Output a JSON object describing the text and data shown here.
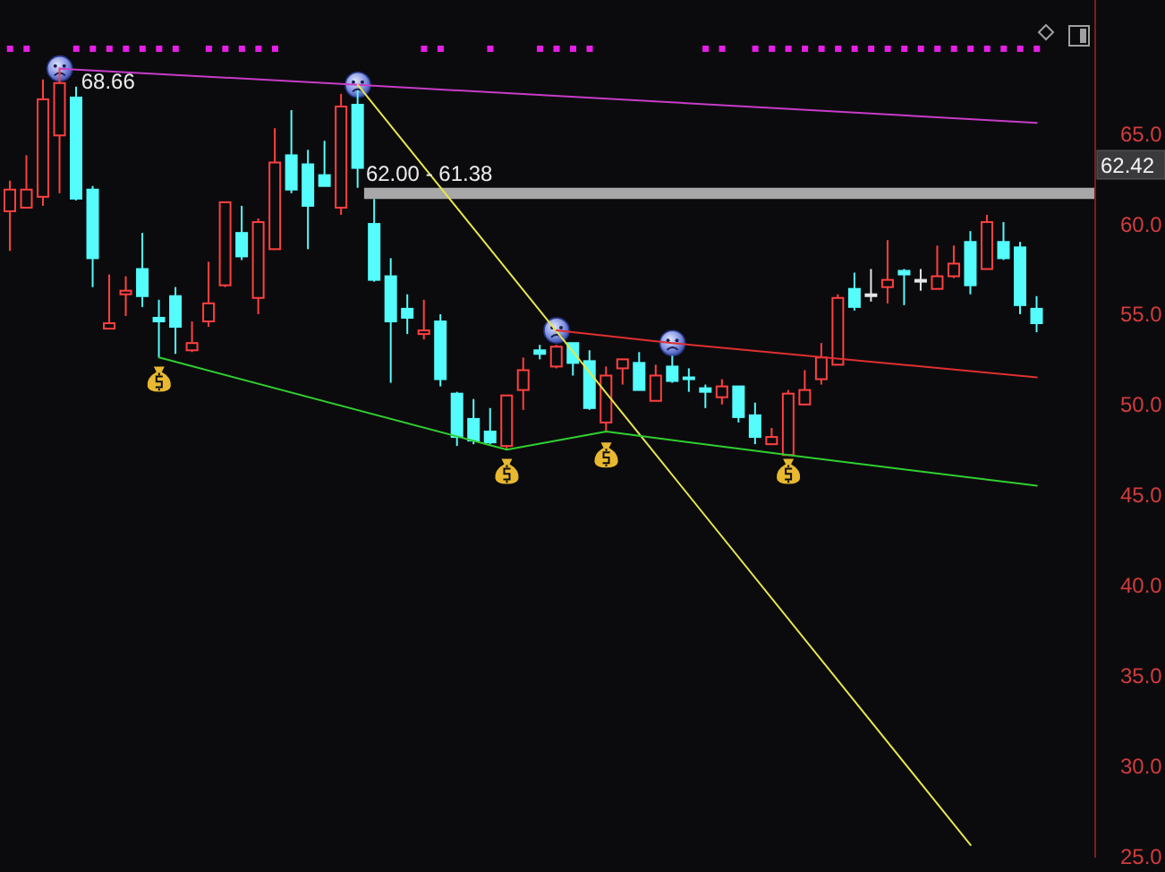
{
  "chart_data": {
    "type": "candlestick",
    "categories": [
      null,
      null,
      null,
      null,
      null,
      null,
      null,
      null,
      null,
      null,
      null,
      null,
      null,
      null,
      null,
      null,
      null,
      null,
      null,
      null,
      null,
      null,
      null,
      null,
      null,
      null,
      null,
      null,
      null,
      null,
      null,
      null,
      null,
      null,
      null,
      null,
      null,
      null,
      null,
      null,
      null,
      null,
      null,
      null,
      null,
      null,
      null,
      null,
      null,
      null,
      null,
      null,
      null,
      null,
      null,
      null,
      null,
      null,
      null,
      null,
      null,
      null,
      null
    ],
    "ohlc": [
      [
        60.7,
        62.4,
        58.5,
        61.9
      ],
      [
        60.9,
        63.8,
        60.9,
        61.9
      ],
      [
        61.5,
        68.0,
        61.0,
        66.9
      ],
      [
        64.9,
        68.66,
        61.7,
        67.8
      ],
      [
        67.0,
        67.6,
        61.3,
        61.4
      ],
      [
        61.9,
        62.1,
        56.5,
        58.1
      ],
      [
        54.2,
        57.2,
        54.2,
        54.5
      ],
      [
        56.1,
        57.1,
        54.9,
        56.3
      ],
      [
        57.5,
        59.5,
        55.4,
        56.0
      ],
      [
        54.8,
        55.8,
        52.6,
        54.6
      ],
      [
        56.0,
        56.5,
        52.8,
        54.3
      ],
      [
        53.0,
        54.6,
        52.9,
        53.4
      ],
      [
        54.6,
        57.9,
        54.3,
        55.6
      ],
      [
        56.6,
        61.2,
        56.5,
        61.2
      ],
      [
        59.5,
        61.0,
        58.0,
        58.2
      ],
      [
        55.9,
        60.3,
        55.0,
        60.1
      ],
      [
        58.6,
        65.3,
        58.6,
        63.4
      ],
      [
        63.8,
        66.3,
        61.7,
        61.9
      ],
      [
        63.3,
        64.1,
        58.6,
        61.0
      ],
      [
        62.7,
        64.6,
        62.1,
        62.1
      ],
      [
        60.9,
        67.2,
        60.5,
        66.5
      ],
      [
        66.6,
        67.4,
        62.0,
        63.1
      ],
      [
        60.0,
        61.38,
        56.8,
        56.9
      ],
      [
        57.1,
        58.1,
        51.2,
        54.6
      ],
      [
        55.3,
        56.1,
        53.9,
        54.8
      ],
      [
        53.9,
        55.8,
        53.6,
        54.1
      ],
      [
        54.6,
        55.0,
        51.0,
        51.4
      ],
      [
        50.6,
        50.7,
        47.7,
        48.2
      ],
      [
        49.2,
        50.3,
        47.8,
        48.0
      ],
      [
        48.5,
        49.8,
        47.8,
        47.9
      ],
      [
        47.7,
        50.5,
        47.5,
        50.5
      ],
      [
        50.8,
        52.6,
        49.7,
        51.9
      ],
      [
        53.0,
        53.3,
        52.5,
        52.8
      ],
      [
        52.1,
        53.3,
        52.0,
        53.2
      ],
      [
        53.4,
        53.4,
        51.6,
        52.3
      ],
      [
        52.4,
        53.0,
        49.7,
        49.8
      ],
      [
        49.0,
        52.1,
        48.5,
        51.6
      ],
      [
        52.0,
        52.5,
        51.1,
        52.5
      ],
      [
        52.3,
        52.9,
        50.8,
        50.8
      ],
      [
        50.2,
        52.2,
        50.2,
        51.6
      ],
      [
        52.1,
        52.7,
        51.2,
        51.3
      ],
      [
        51.5,
        52.0,
        50.7,
        51.4
      ],
      [
        50.9,
        51.1,
        49.8,
        50.7
      ],
      [
        50.4,
        51.4,
        50.0,
        51.0
      ],
      [
        51.0,
        51.0,
        49.0,
        49.3
      ],
      [
        49.4,
        50.1,
        47.8,
        48.2
      ],
      [
        47.8,
        48.7,
        47.8,
        48.2
      ],
      [
        47.2,
        50.8,
        47.2,
        50.6
      ],
      [
        50.0,
        51.9,
        50.0,
        50.8
      ],
      [
        51.4,
        53.4,
        51.1,
        52.6
      ],
      [
        52.2,
        56.1,
        52.2,
        55.9
      ],
      [
        56.4,
        57.3,
        55.2,
        55.4
      ],
      [
        56.1,
        57.5,
        55.7,
        56.0
      ],
      [
        56.5,
        59.1,
        55.6,
        56.9
      ],
      [
        57.4,
        57.5,
        55.5,
        57.2
      ],
      [
        56.9,
        57.5,
        56.3,
        56.8
      ],
      [
        56.4,
        58.8,
        56.4,
        57.1
      ],
      [
        57.1,
        58.8,
        57.0,
        57.8
      ],
      [
        59.0,
        59.6,
        56.1,
        56.6
      ],
      [
        57.5,
        60.5,
        57.5,
        60.1
      ],
      [
        59.0,
        60.1,
        58.0,
        58.1
      ],
      [
        58.7,
        59.0,
        55.0,
        55.5
      ],
      [
        55.3,
        56.0,
        54.0,
        54.5
      ]
    ],
    "colors": [
      "#ff4040",
      "#ff4040",
      "#ff4040",
      "#ff4040",
      "#54fcfc",
      "#54fcfc",
      "#ff4040",
      "#ff4040",
      "#54fcfc",
      "#54fcfc",
      "#54fcfc",
      "#ff4040",
      "#ff4040",
      "#ff4040",
      "#54fcfc",
      "#ff4040",
      "#ff4040",
      "#54fcfc",
      "#54fcfc",
      "#54fcfc",
      "#ff4040",
      "#54fcfc",
      "#54fcfc",
      "#54fcfc",
      "#54fcfc",
      "#ff4040",
      "#54fcfc",
      "#54fcfc",
      "#54fcfc",
      "#54fcfc",
      "#ff4040",
      "#ff4040",
      "#54fcfc",
      "#ff4040",
      "#54fcfc",
      "#54fcfc",
      "#ff4040",
      "#ff4040",
      "#54fcfc",
      "#ff4040",
      "#54fcfc",
      "#54fcfc",
      "#54fcfc",
      "#ff4040",
      "#54fcfc",
      "#54fcfc",
      "#ff4040",
      "#ff4040",
      "#ff4040",
      "#ff4040",
      "#ff4040",
      "#54fcfc",
      "#e6e6e6",
      "#ff4040",
      "#54fcfc",
      "#e6e6e6",
      "#ff4040",
      "#ff4040",
      "#54fcfc",
      "#ff4040",
      "#54fcfc",
      "#54fcfc",
      "#54fcfc"
    ],
    "series": [
      {
        "type": "line",
        "color": "#c83cc8",
        "values": [
          null,
          null,
          null,
          68.6,
          null,
          null,
          null,
          null,
          null,
          null,
          null,
          null,
          null,
          null,
          null,
          null,
          null,
          null,
          null,
          null,
          null,
          67.7,
          null,
          null,
          null,
          null,
          null,
          null,
          null,
          null,
          null,
          null,
          null,
          null,
          null,
          null,
          null,
          null,
          null,
          null,
          null,
          null,
          null,
          null,
          null,
          null,
          null,
          null,
          null,
          null,
          null,
          null,
          null,
          null,
          null,
          null,
          null,
          null,
          null,
          null,
          null,
          null,
          65.6
        ]
      },
      {
        "type": "line",
        "color": "#e6e64a",
        "values": [
          null,
          null,
          null,
          null,
          null,
          null,
          null,
          null,
          null,
          null,
          null,
          null,
          null,
          null,
          null,
          null,
          null,
          null,
          null,
          null,
          null,
          67.7,
          null,
          null,
          null,
          null,
          null,
          null,
          null,
          null,
          null,
          null,
          null,
          null,
          null,
          null,
          null,
          null,
          null,
          null,
          null,
          null,
          null,
          null,
          null,
          null,
          null,
          null,
          null,
          null,
          null,
          null,
          null,
          null,
          null,
          null,
          null,
          null,
          25.6,
          null,
          null,
          null,
          null
        ]
      },
      {
        "type": "line",
        "color": "#e03030",
        "values": [
          null,
          null,
          null,
          null,
          null,
          null,
          null,
          null,
          null,
          null,
          null,
          null,
          null,
          null,
          null,
          null,
          null,
          null,
          null,
          null,
          null,
          null,
          null,
          null,
          null,
          null,
          null,
          null,
          null,
          null,
          null,
          null,
          null,
          54.1,
          null,
          null,
          null,
          null,
          null,
          null,
          53.4,
          null,
          null,
          null,
          null,
          null,
          null,
          null,
          null,
          null,
          null,
          null,
          null,
          null,
          null,
          null,
          null,
          null,
          null,
          null,
          null,
          null,
          51.5
        ]
      },
      {
        "type": "line",
        "color": "#30d030",
        "values": [
          null,
          null,
          null,
          null,
          null,
          null,
          null,
          null,
          null,
          52.6,
          null,
          null,
          null,
          null,
          null,
          null,
          null,
          null,
          null,
          null,
          null,
          null,
          null,
          null,
          null,
          null,
          null,
          null,
          null,
          null,
          47.5,
          null,
          null,
          null,
          null,
          null,
          48.5,
          null,
          null,
          null,
          null,
          null,
          null,
          null,
          null,
          null,
          null,
          47.2,
          null,
          null,
          null,
          null,
          null,
          null,
          null,
          null,
          null,
          null,
          null,
          null,
          null,
          null,
          45.5
        ]
      },
      {
        "type": "scatter",
        "color": "#e61ee6",
        "marker": "square",
        "values": [
          69.7,
          69.7,
          null,
          null,
          69.7,
          69.7,
          69.7,
          69.7,
          69.7,
          69.7,
          69.7,
          null,
          69.7,
          69.7,
          69.7,
          69.7,
          69.7,
          null,
          null,
          null,
          null,
          null,
          null,
          null,
          null,
          69.7,
          69.7,
          null,
          null,
          69.7,
          null,
          null,
          69.7,
          69.7,
          69.7,
          69.7,
          null,
          null,
          null,
          null,
          null,
          null,
          69.7,
          69.7,
          null,
          69.7,
          69.7,
          69.7,
          69.7,
          69.7,
          69.7,
          69.7,
          69.7,
          69.7,
          69.7,
          69.7,
          69.7,
          69.7,
          69.7,
          69.7,
          69.7,
          69.7,
          69.7
        ]
      },
      {
        "type": "scatter",
        "color": "#e8b830",
        "values": [
          null,
          null,
          null,
          null,
          null,
          null,
          null,
          null,
          null,
          51.4,
          null,
          null,
          null,
          null,
          null,
          null,
          null,
          null,
          null,
          null,
          null,
          null,
          null,
          null,
          null,
          null,
          null,
          null,
          null,
          null,
          46.3,
          null,
          null,
          null,
          null,
          null,
          47.2,
          null,
          null,
          null,
          null,
          null,
          null,
          null,
          null,
          null,
          null,
          46.3,
          null,
          null,
          null,
          null,
          null,
          null,
          null,
          null,
          null,
          null,
          null,
          null,
          null,
          null,
          null
        ]
      }
    ],
    "ylim": [
      24.9,
      72.4
    ],
    "yticks": [
      {
        "value": 25,
        "label": "25.0"
      },
      {
        "value": 30,
        "label": "30.0"
      },
      {
        "value": 35,
        "label": "35.0"
      },
      {
        "value": 40,
        "label": "40.0"
      },
      {
        "value": 45,
        "label": "45.0"
      },
      {
        "value": 50,
        "label": "50.0"
      },
      {
        "value": 55,
        "label": "55.0"
      },
      {
        "value": 60,
        "label": "60.0"
      },
      {
        "value": 65,
        "label": "65.0"
      }
    ],
    "tick_labels": "y",
    "bands": [
      {
        "axis": "y",
        "from": 61.38,
        "to": 62.0,
        "label": "62.00 - 61.38",
        "color": "#a8a8a8"
      }
    ],
    "annotations": [
      {
        "text": "68.66",
        "y": 68.66
      },
      "62.42"
    ]
  }
}
